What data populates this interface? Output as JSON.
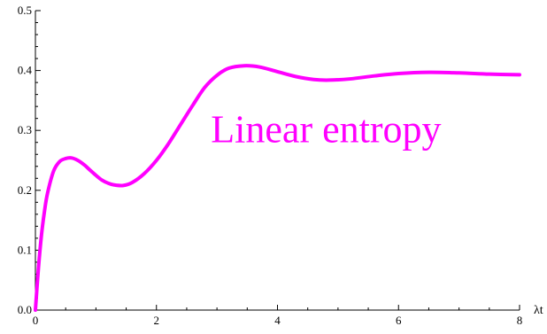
{
  "chart_data": {
    "type": "line",
    "title": "",
    "xlabel": "λt",
    "ylabel": "",
    "xlim": [
      0,
      8
    ],
    "ylim": [
      0,
      0.5
    ],
    "x_ticks": [
      "0",
      "2",
      "4",
      "6",
      "8"
    ],
    "y_ticks": [
      "0.0",
      "0.1",
      "0.2",
      "0.3",
      "0.4",
      "0.5"
    ],
    "grid": false,
    "annotation": "Linear entropy",
    "series": [
      {
        "color": "#ff00ff",
        "x": [
          0,
          0.05,
          0.1,
          0.15,
          0.2,
          0.3,
          0.4,
          0.5,
          0.6,
          0.7,
          0.8,
          0.9,
          1.0,
          1.1,
          1.2,
          1.3,
          1.45,
          1.6,
          1.8,
          2.0,
          2.2,
          2.4,
          2.6,
          2.8,
          3.0,
          3.2,
          3.45,
          3.7,
          4.0,
          4.3,
          4.6,
          4.85,
          5.2,
          5.6,
          6.0,
          6.5,
          7.0,
          7.5,
          8.0
        ],
        "y": [
          0.0,
          0.07,
          0.125,
          0.165,
          0.195,
          0.232,
          0.248,
          0.253,
          0.254,
          0.25,
          0.243,
          0.234,
          0.225,
          0.217,
          0.212,
          0.209,
          0.208,
          0.213,
          0.228,
          0.25,
          0.278,
          0.31,
          0.342,
          0.372,
          0.392,
          0.404,
          0.408,
          0.406,
          0.398,
          0.39,
          0.385,
          0.384,
          0.386,
          0.391,
          0.395,
          0.397,
          0.396,
          0.394,
          0.393
        ]
      }
    ]
  }
}
